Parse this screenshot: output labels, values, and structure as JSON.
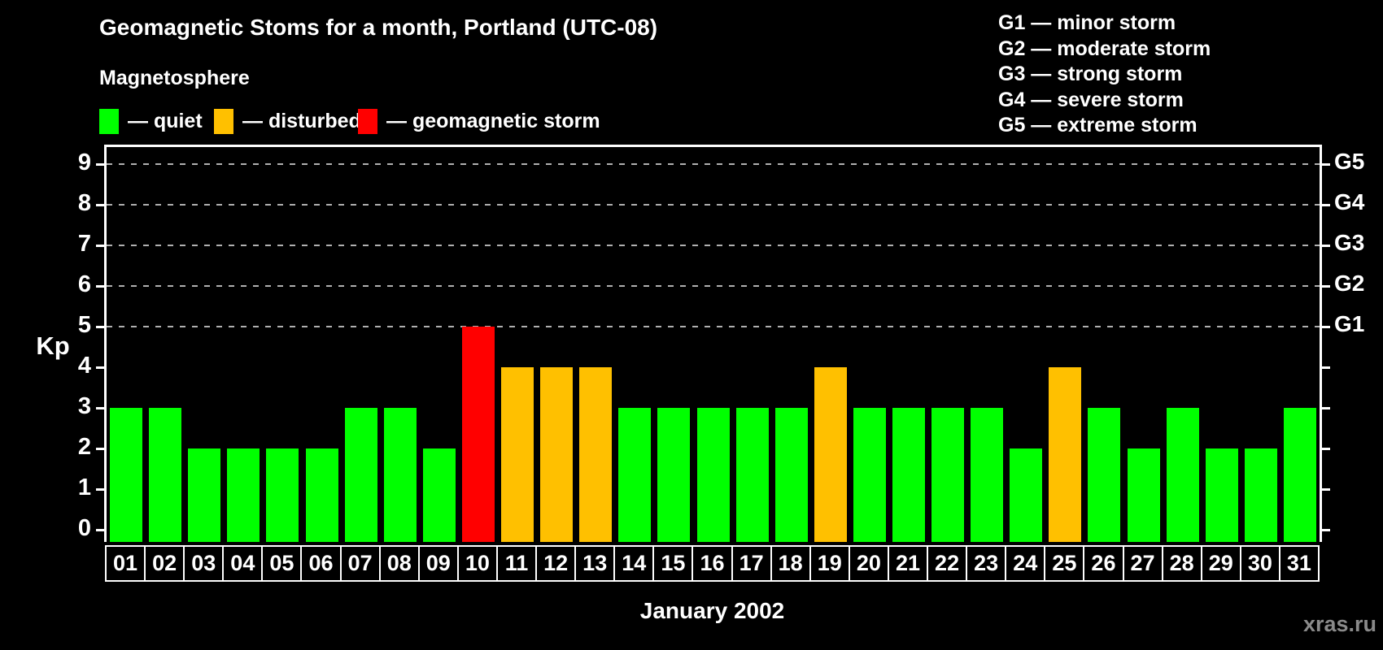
{
  "title": "Geomagnetic Stoms for a month, Portland (UTC-08)",
  "subtitle": "Magnetosphere",
  "legend": {
    "items": [
      {
        "key": "quiet",
        "label": "— quiet",
        "color": "#00ff00"
      },
      {
        "key": "disturbed",
        "label": "— disturbed",
        "color": "#ffc000"
      },
      {
        "key": "storm",
        "label": "— geomagnetic storm",
        "color": "#ff0000"
      }
    ]
  },
  "g_scale_legend": [
    "G1 — minor storm",
    "G2 — moderate storm",
    "G3 — strong storm",
    "G4 — severe storm",
    "G5 — extreme storm"
  ],
  "watermark": "xras.ru",
  "chart_data": {
    "type": "bar",
    "title": "Geomagnetic Stoms for a month, Portland (UTC-08)",
    "xlabel": "January 2002",
    "ylabel": "Kp",
    "ylim": [
      0,
      9
    ],
    "grid": "dashed horizontal lines at Kp 5-9 only",
    "grid_levels": [
      5,
      6,
      7,
      8,
      9
    ],
    "y_ticks": [
      0,
      1,
      2,
      3,
      4,
      5,
      6,
      7,
      8,
      9
    ],
    "right_axis": [
      {
        "kp": 5,
        "label": "G1"
      },
      {
        "kp": 6,
        "label": "G2"
      },
      {
        "kp": 7,
        "label": "G3"
      },
      {
        "kp": 8,
        "label": "G4"
      },
      {
        "kp": 9,
        "label": "G5"
      }
    ],
    "categories": [
      "01",
      "02",
      "03",
      "04",
      "05",
      "06",
      "07",
      "08",
      "09",
      "10",
      "11",
      "12",
      "13",
      "14",
      "15",
      "16",
      "17",
      "18",
      "19",
      "20",
      "21",
      "22",
      "23",
      "24",
      "25",
      "26",
      "27",
      "28",
      "29",
      "30",
      "31"
    ],
    "values": [
      3,
      3,
      2,
      2,
      2,
      2,
      3,
      3,
      2,
      5,
      4,
      4,
      4,
      3,
      3,
      3,
      3,
      3,
      4,
      3,
      3,
      3,
      3,
      2,
      4,
      3,
      2,
      3,
      2,
      2,
      3
    ],
    "statuses": [
      "quiet",
      "quiet",
      "quiet",
      "quiet",
      "quiet",
      "quiet",
      "quiet",
      "quiet",
      "quiet",
      "storm",
      "disturbed",
      "disturbed",
      "disturbed",
      "quiet",
      "quiet",
      "quiet",
      "quiet",
      "quiet",
      "disturbed",
      "quiet",
      "quiet",
      "quiet",
      "quiet",
      "quiet",
      "disturbed",
      "quiet",
      "quiet",
      "quiet",
      "quiet",
      "quiet",
      "quiet"
    ],
    "colors": {
      "quiet": "#00ff00",
      "disturbed": "#ffc000",
      "storm": "#ff0000"
    },
    "legend_position": "top-left and top-right"
  }
}
